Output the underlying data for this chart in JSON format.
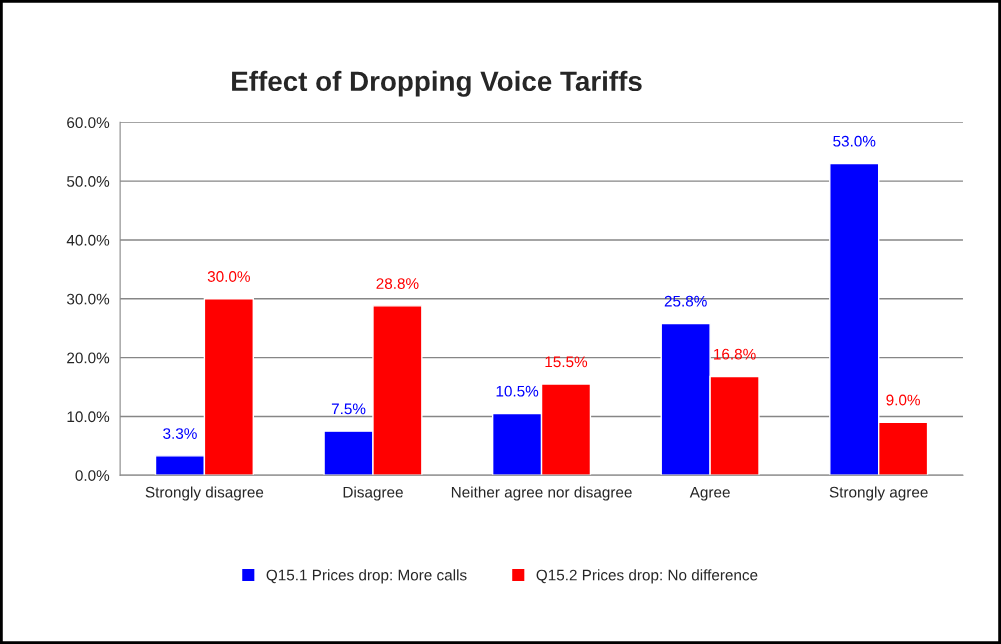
{
  "chart_data": {
    "type": "bar",
    "title": "Effect of Dropping Voice Tariffs",
    "categories": [
      "Strongly disagree",
      "Disagree",
      "Neither agree nor disagree",
      "Agree",
      "Strongly agree"
    ],
    "series": [
      {
        "name": "Q15.1 Prices drop: More calls",
        "color": "#0000ff",
        "values": [
          3.3,
          7.5,
          10.5,
          25.8,
          53.0
        ],
        "value_labels": [
          "3.3%",
          "7.5%",
          "10.5%",
          "25.8%",
          "53.0%"
        ]
      },
      {
        "name": "Q15.2 Prices drop: No difference",
        "color": "#ff0000",
        "values": [
          30.0,
          28.8,
          15.5,
          16.8,
          9.0
        ],
        "value_labels": [
          "30.0%",
          "28.8%",
          "15.5%",
          "16.8%",
          "9.0%"
        ]
      }
    ],
    "ylim": [
      0,
      60
    ],
    "yticks": [
      {
        "value": 0,
        "label": "0.0%"
      },
      {
        "value": 10,
        "label": "10.0%"
      },
      {
        "value": 20,
        "label": "20.0%"
      },
      {
        "value": 30,
        "label": "30.0%"
      },
      {
        "value": 40,
        "label": "40.0%"
      },
      {
        "value": 50,
        "label": "50.0%"
      },
      {
        "value": 60,
        "label": "60.0%"
      }
    ],
    "grid": "y",
    "legend": "bottom"
  }
}
